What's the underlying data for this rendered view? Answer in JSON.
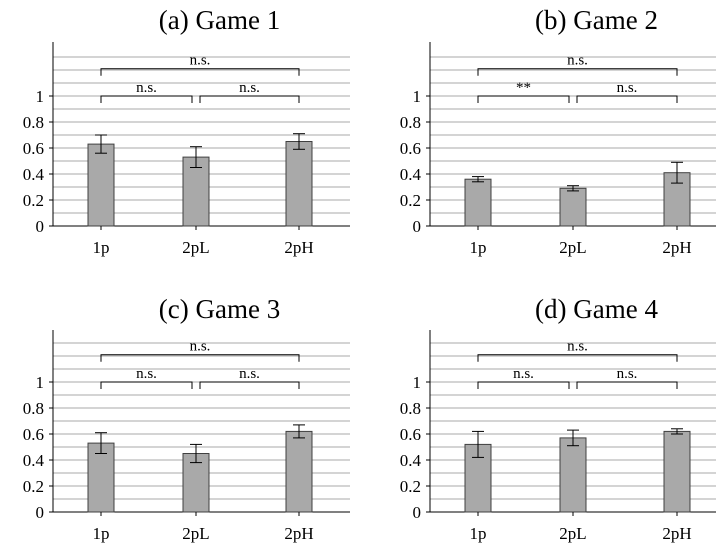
{
  "colors": {
    "bar_fill": "#a9a9a9",
    "bar_stroke": "#404040",
    "grid": "#a8a8a8",
    "axis": "#000000"
  },
  "chart_data": [
    {
      "type": "bar",
      "title": "(a) Game 1",
      "categories": [
        "1p",
        "2pL",
        "2pH"
      ],
      "values": [
        0.63,
        0.53,
        0.65
      ],
      "errors": [
        0.07,
        0.08,
        0.06
      ],
      "ylim": [
        0,
        1.4
      ],
      "yticks": [
        "0",
        "0.2",
        "0.4",
        "0.6",
        "0.8",
        "1"
      ],
      "grid": true,
      "significance": [
        {
          "from": "1p",
          "to": "2pL",
          "label": "n.s."
        },
        {
          "from": "2pL",
          "to": "2pH",
          "label": "n.s."
        },
        {
          "from": "1p",
          "to": "2pH",
          "label": "n.s."
        }
      ]
    },
    {
      "type": "bar",
      "title": "(b) Game 2",
      "categories": [
        "1p",
        "2pL",
        "2pH"
      ],
      "values": [
        0.36,
        0.29,
        0.41
      ],
      "errors": [
        0.02,
        0.02,
        0.08
      ],
      "ylim": [
        0,
        1.4
      ],
      "yticks": [
        "0",
        "0.2",
        "0.4",
        "0.6",
        "0.8",
        "1"
      ],
      "grid": true,
      "significance": [
        {
          "from": "1p",
          "to": "2pL",
          "label": "**"
        },
        {
          "from": "2pL",
          "to": "2pH",
          "label": "n.s."
        },
        {
          "from": "1p",
          "to": "2pH",
          "label": "n.s."
        }
      ]
    },
    {
      "type": "bar",
      "title": "(c) Game 3",
      "categories": [
        "1p",
        "2pL",
        "2pH"
      ],
      "values": [
        0.53,
        0.45,
        0.62
      ],
      "errors": [
        0.08,
        0.07,
        0.05
      ],
      "ylim": [
        0,
        1.4
      ],
      "yticks": [
        "0",
        "0.2",
        "0.4",
        "0.6",
        "0.8",
        "1"
      ],
      "grid": true,
      "significance": [
        {
          "from": "1p",
          "to": "2pL",
          "label": "n.s."
        },
        {
          "from": "2pL",
          "to": "2pH",
          "label": "n.s."
        },
        {
          "from": "1p",
          "to": "2pH",
          "label": "n.s."
        }
      ]
    },
    {
      "type": "bar",
      "title": "(d) Game 4",
      "categories": [
        "1p",
        "2pL",
        "2pH"
      ],
      "values": [
        0.52,
        0.57,
        0.62
      ],
      "errors": [
        0.1,
        0.06,
        0.02
      ],
      "ylim": [
        0,
        1.4
      ],
      "yticks": [
        "0",
        "0.2",
        "0.4",
        "0.6",
        "0.8",
        "1"
      ],
      "grid": true,
      "significance": [
        {
          "from": "1p",
          "to": "2pL",
          "label": "n.s."
        },
        {
          "from": "2pL",
          "to": "2pH",
          "label": "n.s."
        },
        {
          "from": "1p",
          "to": "2pH",
          "label": "n.s."
        }
      ]
    }
  ]
}
